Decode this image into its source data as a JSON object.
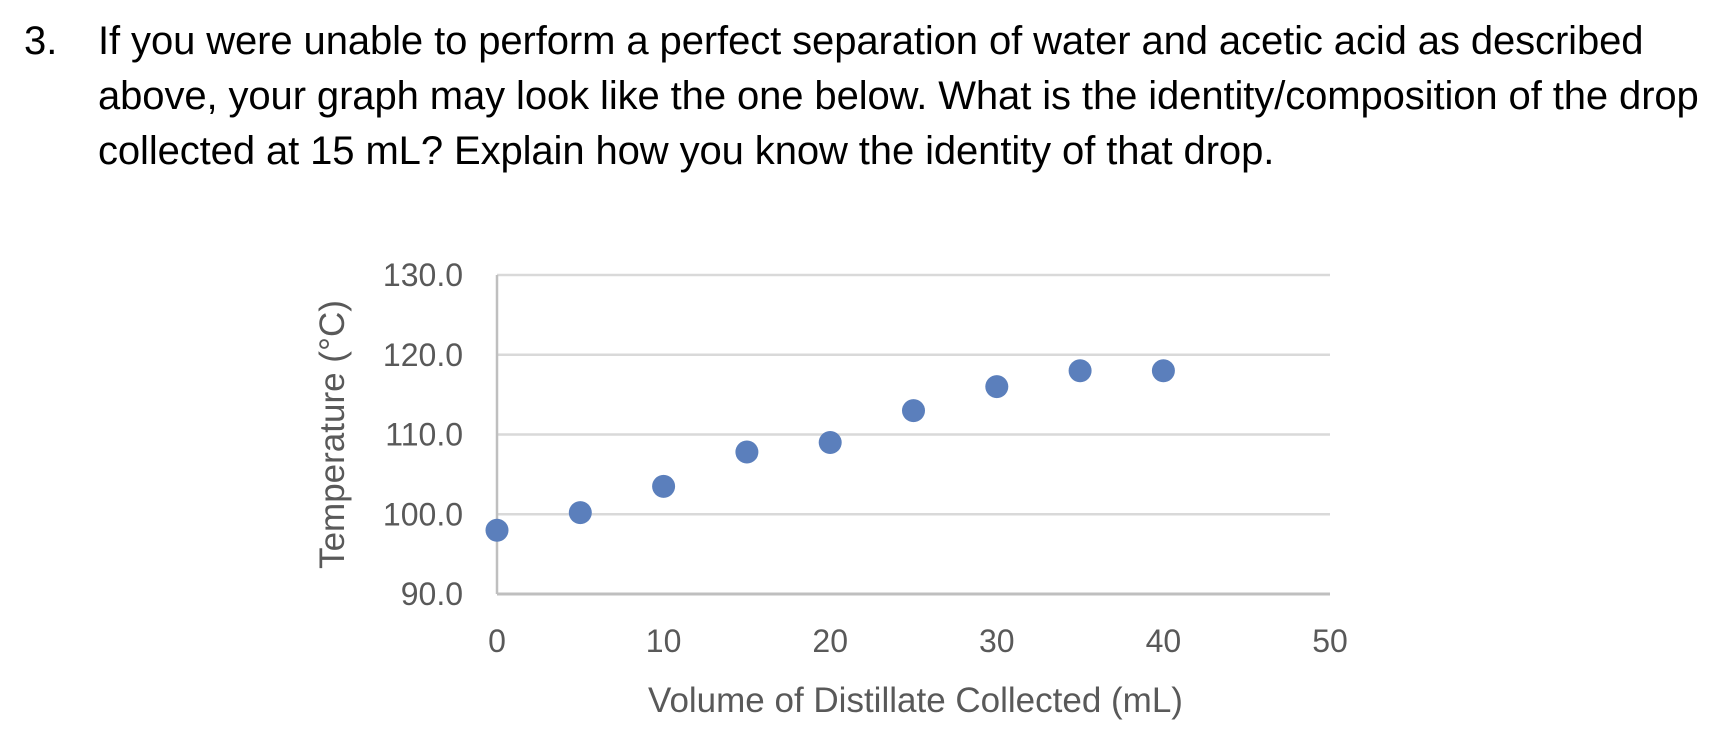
{
  "question": {
    "number": "3.",
    "text": "If you were unable to perform a perfect separation of water and acetic acid as described above, your graph may look like the one below. What is the identity/composition of the drop collected at 15 mL? Explain how you know the identity of that drop."
  },
  "chart_data": {
    "type": "scatter",
    "title": "",
    "xlabel": "Volume of Distillate Collected (mL)",
    "ylabel": "Temperature (°C)",
    "xlim": [
      0,
      50
    ],
    "ylim": [
      90,
      130
    ],
    "xticks": [
      "0",
      "10",
      "20",
      "30",
      "40",
      "50"
    ],
    "yticks": [
      "90.0",
      "100.0",
      "110.0",
      "120.0",
      "130.0"
    ],
    "grid": "horizontal",
    "marker_color": "#5b7fbc",
    "gridline_color": "#d9d9d9",
    "axis_color": "#bfbfbf",
    "text_color": "#595959",
    "series": [
      {
        "x": [
          0,
          5,
          10,
          15,
          20,
          25,
          30,
          35,
          40
        ],
        "y": [
          98.0,
          100.2,
          103.5,
          107.8,
          109.0,
          113.0,
          116.0,
          118.0,
          118.0
        ]
      }
    ]
  }
}
